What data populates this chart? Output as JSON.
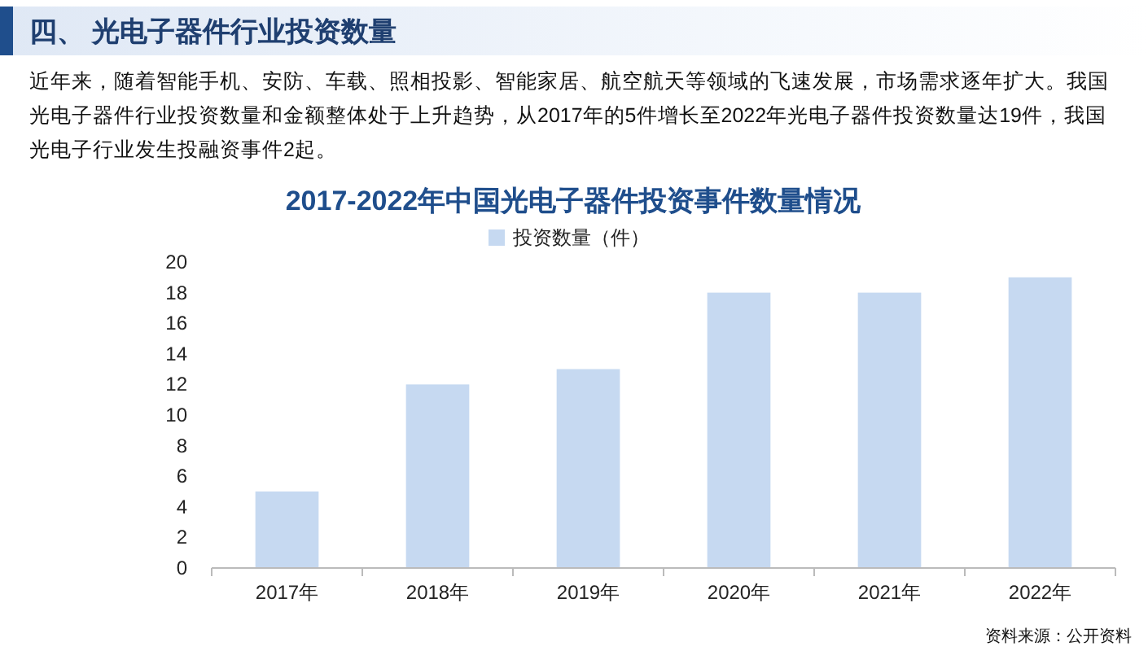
{
  "chart_data": {
    "type": "bar",
    "title": "2017-2022年中国光电子器件投资事件数量情况",
    "annotations": [
      "四、 光电子器件行业投资数量",
      "近年来，随着智能手机、安防、车载、照相投影、智能家居、航空航天等领域的飞速发展，市场需求逐年扩大。我国光电子器件行业投资数量和金额整体处于上升趋势，从2017年的5件增长至2022年光电子器件投资数量达19件，我国光电子行业发生投融资事件2起。",
      "资料来源：公开资料"
    ],
    "categories": [
      "2017年",
      "2018年",
      "2019年",
      "2020年",
      "2021年",
      "2022年"
    ],
    "series": [
      {
        "name": "投资数量（件）",
        "color": "#c6d9f1",
        "values": [
          5,
          12,
          13,
          18,
          18,
          19
        ]
      }
    ],
    "ylim": [
      0,
      20
    ],
    "yticks": [
      0,
      2,
      4,
      6,
      8,
      10,
      12,
      14,
      16,
      18,
      20
    ],
    "legend": "top"
  }
}
